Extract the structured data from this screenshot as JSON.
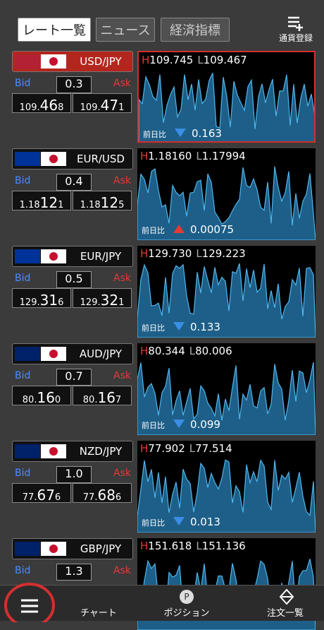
{
  "tabs": [
    "レート一覧",
    "ニュース",
    "経済指標"
  ],
  "register": "通貨登録",
  "labels": {
    "bid": "Bid",
    "ask": "Ask",
    "high": "H",
    "low": "L",
    "change": "前日比"
  },
  "rows": [
    {
      "pair": "USD/JPY",
      "spread": "0.3",
      "bid": [
        "109.",
        "46",
        "8"
      ],
      "ask": [
        "109.",
        "47",
        "1"
      ],
      "high": "109.745",
      "low": "109.467",
      "change": "0.163",
      "direction": "down"
    },
    {
      "pair": "EUR/USD",
      "spread": "0.4",
      "bid": [
        "1.18",
        "12",
        "1"
      ],
      "ask": [
        "1.18",
        "12",
        "5"
      ],
      "high": "1.18160",
      "low": "1.17994",
      "change": "0.00075",
      "direction": "up"
    },
    {
      "pair": "EUR/JPY",
      "spread": "0.5",
      "bid": [
        "129.",
        "31",
        "6"
      ],
      "ask": [
        "129.",
        "32",
        "1"
      ],
      "high": "129.730",
      "low": "129.223",
      "change": "0.133",
      "direction": "down"
    },
    {
      "pair": "AUD/JPY",
      "spread": "0.7",
      "bid": [
        "80.",
        "16",
        "0"
      ],
      "ask": [
        "80.",
        "16",
        "7"
      ],
      "high": "80.344",
      "low": "80.006",
      "change": "0.099",
      "direction": "down"
    },
    {
      "pair": "NZD/JPY",
      "spread": "1.0",
      "bid": [
        "77.",
        "67",
        "6"
      ],
      "ask": [
        "77.",
        "68",
        "6"
      ],
      "high": "77.902",
      "low": "77.514",
      "change": "0.013",
      "direction": "down"
    },
    {
      "pair": "GBP/JPY",
      "spread": "1.3",
      "high": "151.618",
      "low": "151.136"
    }
  ],
  "nav": [
    "チャート",
    "ポジション",
    "注文一覧"
  ]
}
